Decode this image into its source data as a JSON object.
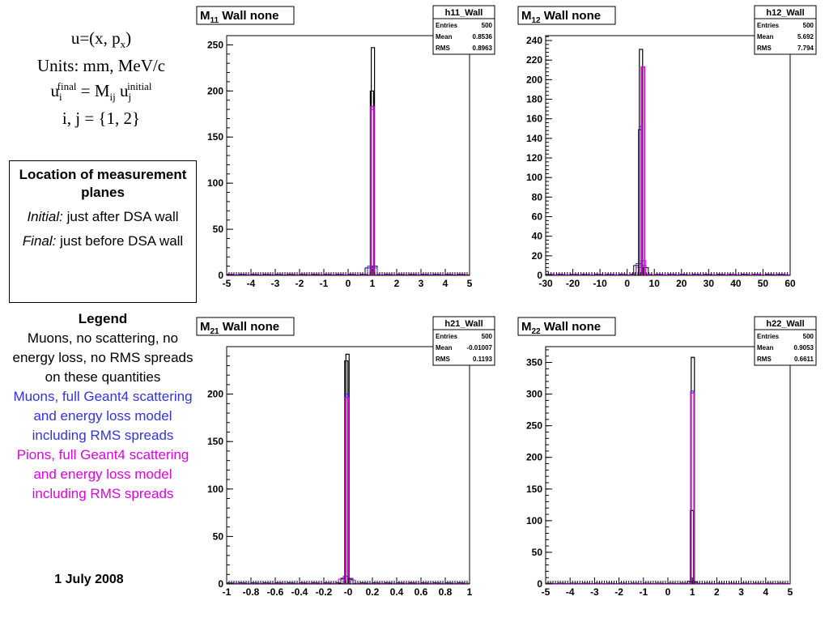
{
  "formula": {
    "line1_pre": "u=(x, p",
    "line1_sub": "x",
    "line1_post": ")",
    "line2": "Units: mm, MeV/c",
    "line3_u": "u",
    "line3_sup1": "final",
    "line3_sub1": "i",
    "line3_mid": " = M",
    "line3_sub2": "ij",
    "line3_u2": " u",
    "line3_sub3": "j",
    "line3_sup3": "initial",
    "line4": "i, j = {1, 2}"
  },
  "location": {
    "title": "Location of measurement planes",
    "initial_label": "Initial:",
    "initial_text": " just after DSA wall",
    "final_label": "Final:",
    "final_text": " just before DSA wall"
  },
  "legend": {
    "title": "Legend",
    "black": "Muons, no scattering, no energy loss, no RMS spreads on these quantities",
    "blue": "Muons, full Geant4 scattering and energy loss model including RMS spreads",
    "magenta": "Pions, full Geant4 scattering and energy loss model including RMS spreads",
    "colors": {
      "black": "#000000",
      "blue": "#3333dd",
      "magenta": "#dd00dd"
    }
  },
  "date": "1 July 2008",
  "chart_data": [
    {
      "type": "histogram",
      "title_M": "M",
      "title_sub": "11",
      "title_rest": " Wall none",
      "stats": {
        "name": "h11_Wall",
        "entries_label": "Entries",
        "entries": "500",
        "mean_label": "Mean",
        "mean": "0.8536",
        "rms_label": "RMS",
        "rms": "0.8963"
      },
      "xlim": [
        -5,
        5
      ],
      "ylim": [
        0,
        260
      ],
      "xticks": [
        "-5",
        "-4",
        "-3",
        "-2",
        "-1",
        "0",
        "1",
        "2",
        "3",
        "4",
        "5"
      ],
      "yticks": [
        "0",
        "50",
        "100",
        "150",
        "200",
        "250"
      ],
      "series": [
        {
          "color": "black",
          "peaks": [
            [
              0.98,
              200
            ],
            [
              1.02,
              247
            ]
          ],
          "noise": [
            [
              0.85,
              8
            ],
            [
              1.1,
              10
            ],
            [
              0.9,
              5
            ]
          ]
        },
        {
          "color": "blue",
          "peaks": [
            [
              1.0,
              180
            ]
          ],
          "noise": [
            [
              0.9,
              10
            ],
            [
              1.1,
              8
            ]
          ]
        },
        {
          "color": "magenta",
          "peaks": [
            [
              1.0,
              183
            ]
          ],
          "noise": [
            [
              0.95,
              6
            ],
            [
              1.05,
              5
            ]
          ]
        }
      ]
    },
    {
      "type": "histogram",
      "title_M": "M",
      "title_sub": "12",
      "title_rest": " Wall none",
      "stats": {
        "name": "h12_Wall",
        "entries_label": "Entries",
        "entries": "500",
        "mean_label": "Mean",
        "mean": "5.692",
        "rms_label": "RMS",
        "rms": "7.794"
      },
      "xlim": [
        -30,
        60
      ],
      "ylim": [
        0,
        245
      ],
      "xticks": [
        "-30",
        "-20",
        "-10",
        "0",
        "10",
        "20",
        "30",
        "40",
        "50",
        "60"
      ],
      "yticks": [
        "0",
        "20",
        "40",
        "60",
        "80",
        "100",
        "120",
        "140",
        "160",
        "180",
        "200",
        "220",
        "240"
      ],
      "series": [
        {
          "color": "black",
          "peaks": [
            [
              4.8,
              149
            ],
            [
              5.1,
              231
            ]
          ],
          "noise": [
            [
              3.5,
              10
            ],
            [
              6.5,
              8
            ]
          ]
        },
        {
          "color": "blue",
          "peaks": [
            [
              5.0,
              152
            ]
          ],
          "noise": [
            [
              4.0,
              12
            ],
            [
              6.0,
              10
            ]
          ]
        },
        {
          "color": "magenta",
          "peaks": [
            [
              5.8,
              213
            ]
          ],
          "noise": [
            [
              6.3,
              15
            ],
            [
              4.4,
              8
            ]
          ]
        }
      ]
    },
    {
      "type": "histogram",
      "title_M": "M",
      "title_sub": "21",
      "title_rest": " Wall none",
      "stats": {
        "name": "h21_Wall",
        "entries_label": "Entries",
        "entries": "500",
        "mean_label": "Mean",
        "mean": "-0.01007",
        "rms_label": "RMS",
        "rms": "0.1193"
      },
      "xlim": [
        -1,
        1
      ],
      "ylim": [
        0,
        250
      ],
      "xticks": [
        "-1",
        "-0.8",
        "-0.6",
        "-0.4",
        "-0.2",
        "-0",
        "0.2",
        "0.4",
        "0.6",
        "0.8",
        "1"
      ],
      "yticks": [
        "0",
        "50",
        "100",
        "150",
        "200"
      ],
      "series": [
        {
          "color": "black",
          "peaks": [
            [
              -0.005,
              242
            ],
            [
              -0.015,
              235
            ]
          ],
          "noise": [
            [
              -0.04,
              6
            ],
            [
              0.03,
              5
            ]
          ]
        },
        {
          "color": "blue",
          "peaks": [
            [
              -0.01,
              200
            ]
          ],
          "noise": [
            [
              -0.03,
              8
            ],
            [
              0.02,
              6
            ]
          ]
        },
        {
          "color": "magenta",
          "peaks": [
            [
              -0.01,
              196
            ]
          ],
          "noise": [
            [
              -0.05,
              5
            ],
            [
              0.04,
              4
            ]
          ]
        }
      ]
    },
    {
      "type": "histogram",
      "title_M": "M",
      "title_sub": "22",
      "title_rest": " Wall none",
      "stats": {
        "name": "h22_Wall",
        "entries_label": "Entries",
        "entries": "500",
        "mean_label": "Mean",
        "mean": "0.9053",
        "rms_label": "RMS",
        "rms": "0.6611"
      },
      "xlim": [
        -5,
        5
      ],
      "ylim": [
        0,
        375
      ],
      "xticks": [
        "-5",
        "-4",
        "-3",
        "-2",
        "-1",
        "0",
        "1",
        "2",
        "3",
        "4",
        "5"
      ],
      "yticks": [
        "0",
        "50",
        "100",
        "150",
        "200",
        "250",
        "300",
        "350"
      ],
      "series": [
        {
          "color": "black",
          "peaks": [
            [
              1.02,
              358
            ],
            [
              0.98,
              116
            ]
          ],
          "noise": [
            [
              0.9,
              4
            ],
            [
              1.1,
              3
            ]
          ]
        },
        {
          "color": "blue",
          "peaks": [
            [
              1.0,
              305
            ]
          ],
          "noise": [
            [
              0.95,
              4
            ]
          ]
        },
        {
          "color": "magenta",
          "peaks": [
            [
              1.0,
              302
            ]
          ],
          "noise": [
            [
              1.05,
              3
            ]
          ]
        }
      ]
    }
  ]
}
